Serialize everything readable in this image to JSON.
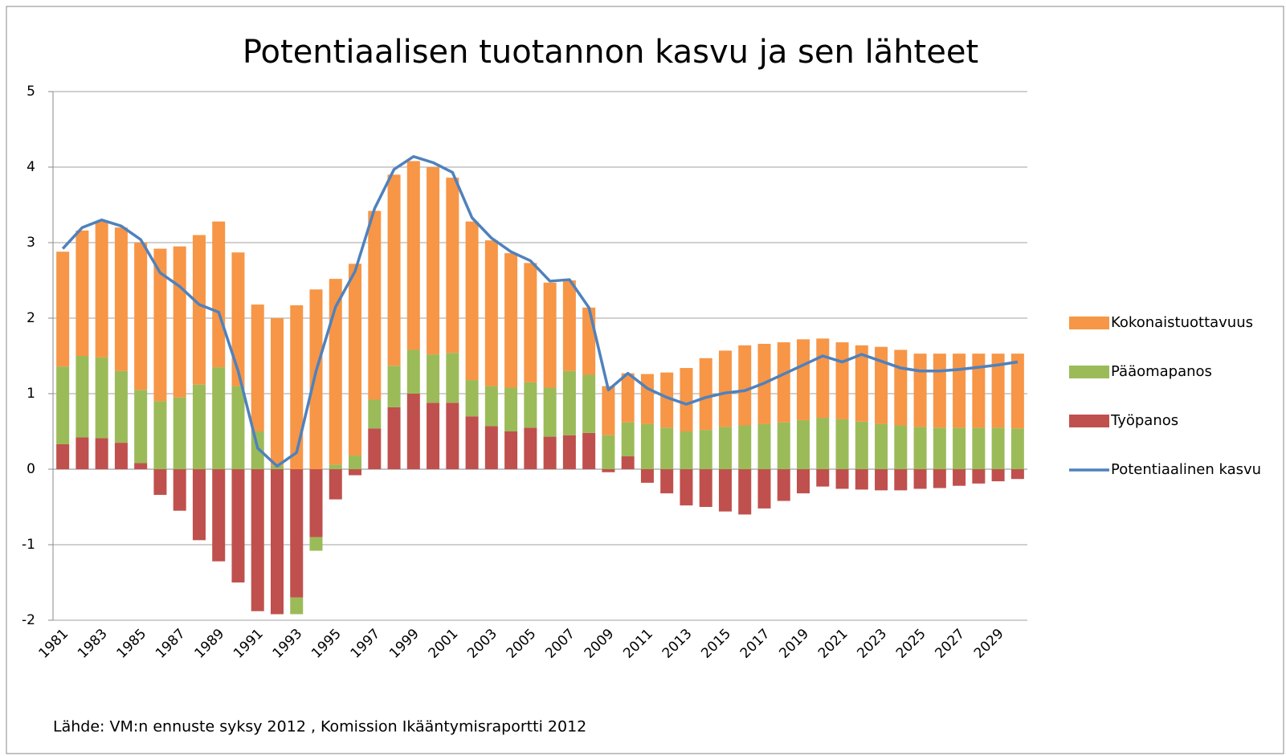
{
  "chart_data": {
    "type": "bar",
    "title": "Potentiaalisen tuotannon kasvu ja sen lähteet",
    "source": "Lähde: VM:n ennuste syksy 2012 , Komission Ikääntymisraportti 2012",
    "stacked": true,
    "categories": [
      "1981",
      null,
      "1983",
      null,
      "1985",
      null,
      "1987",
      null,
      "1989",
      null,
      "1991",
      null,
      "1993",
      null,
      "1995",
      null,
      "1997",
      null,
      "1999",
      null,
      "2001",
      null,
      "2003",
      null,
      "2005",
      null,
      "2007",
      null,
      "2009",
      null,
      "2011",
      null,
      "2013",
      null,
      "2015",
      null,
      "2017",
      null,
      "2019",
      null,
      "2021",
      null,
      "2023",
      null,
      "2025",
      null,
      "2027",
      null,
      "2029",
      null
    ],
    "series": [
      {
        "name": "Kokonaistuottavuus",
        "type": "bar",
        "color": "#f79646",
        "values": [
          1.52,
          1.66,
          1.8,
          1.9,
          1.95,
          2.02,
          2.0,
          1.98,
          1.93,
          1.77,
          1.68,
          1.95,
          2.17,
          2.38,
          2.46,
          2.54,
          2.5,
          2.53,
          2.5,
          2.48,
          2.32,
          2.1,
          1.93,
          1.78,
          1.58,
          1.39,
          1.2,
          0.89,
          0.65,
          0.65,
          0.66,
          0.73,
          0.84,
          0.95,
          1.01,
          1.06,
          1.06,
          1.06,
          1.07,
          1.05,
          1.02,
          1.01,
          1.02,
          1.0,
          0.97,
          0.98,
          0.98,
          0.98,
          0.98,
          0.99
        ]
      },
      {
        "name": "Pääomapanos",
        "type": "bar",
        "color": "#9bbb59",
        "values": [
          1.03,
          1.08,
          1.07,
          0.95,
          0.97,
          0.9,
          0.95,
          1.12,
          1.35,
          1.1,
          0.5,
          0.05,
          -0.22,
          -0.18,
          0.06,
          0.18,
          0.38,
          0.55,
          0.58,
          0.64,
          0.66,
          0.48,
          0.53,
          0.58,
          0.6,
          0.65,
          0.85,
          0.77,
          0.45,
          0.45,
          0.6,
          0.55,
          0.5,
          0.52,
          0.56,
          0.58,
          0.6,
          0.62,
          0.65,
          0.68,
          0.66,
          0.63,
          0.6,
          0.58,
          0.56,
          0.55,
          0.55,
          0.55,
          0.55,
          0.54
        ]
      },
      {
        "name": "Työpanos",
        "type": "bar",
        "color": "#c0504d",
        "values": [
          0.33,
          0.42,
          0.41,
          0.35,
          0.08,
          -0.34,
          -0.55,
          -0.94,
          -1.22,
          -1.5,
          -1.88,
          -1.92,
          -1.7,
          -0.9,
          -0.4,
          -0.08,
          0.54,
          0.82,
          1.0,
          0.88,
          0.88,
          0.7,
          0.57,
          0.5,
          0.55,
          0.43,
          0.45,
          0.48,
          -0.04,
          0.17,
          -0.18,
          -0.32,
          -0.48,
          -0.5,
          -0.56,
          -0.6,
          -0.52,
          -0.42,
          -0.32,
          -0.23,
          -0.26,
          -0.27,
          -0.28,
          -0.28,
          -0.26,
          -0.25,
          -0.22,
          -0.19,
          -0.16,
          -0.13
        ]
      },
      {
        "name": "Potentiaalinen kasvu",
        "type": "line",
        "color": "#4f81bd",
        "values": [
          2.92,
          3.2,
          3.3,
          3.22,
          3.04,
          2.6,
          2.42,
          2.18,
          2.08,
          1.3,
          0.28,
          0.04,
          0.22,
          1.3,
          2.15,
          2.62,
          3.45,
          3.97,
          4.14,
          4.06,
          3.93,
          3.33,
          3.06,
          2.88,
          2.76,
          2.49,
          2.51,
          2.14,
          1.05,
          1.27,
          1.07,
          0.95,
          0.86,
          0.95,
          1.01,
          1.04,
          1.14,
          1.26,
          1.38,
          1.5,
          1.42,
          1.52,
          1.43,
          1.34,
          1.3,
          1.3,
          1.32,
          1.35,
          1.38,
          1.42
        ]
      }
    ],
    "ylim": [
      -2,
      5
    ],
    "yticks": [
      -2,
      -1,
      0,
      1,
      2,
      3,
      4,
      5
    ],
    "grid": true,
    "legend": "right"
  }
}
